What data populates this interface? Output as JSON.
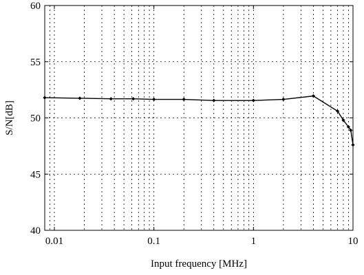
{
  "chart_data": {
    "type": "line",
    "title": "",
    "xlabel": "Input frequency [MHz]",
    "ylabel": "S/N[dB]",
    "xscale": "log",
    "xlim": [
      0.008,
      10
    ],
    "ylim": [
      40,
      60
    ],
    "grid": "dotted",
    "xticks": [
      0.01,
      0.1,
      1,
      10
    ],
    "xtick_labels": [
      "0.01",
      "0.1",
      "1",
      "10"
    ],
    "yticks": [
      40,
      45,
      50,
      55,
      60
    ],
    "ytick_labels": [
      "40",
      "45",
      "50",
      "55",
      "60"
    ],
    "series": [
      {
        "color": "#000000",
        "marker": "diamond",
        "x": [
          0.008,
          0.018,
          0.037,
          0.062,
          0.1,
          0.2,
          0.4,
          1,
          2,
          4,
          7,
          8,
          9,
          9.5,
          10
        ],
        "y": [
          51.8,
          51.75,
          51.7,
          51.7,
          51.65,
          51.65,
          51.55,
          51.55,
          51.65,
          51.95,
          50.6,
          49.8,
          49.2,
          48.9,
          47.6
        ]
      }
    ]
  }
}
